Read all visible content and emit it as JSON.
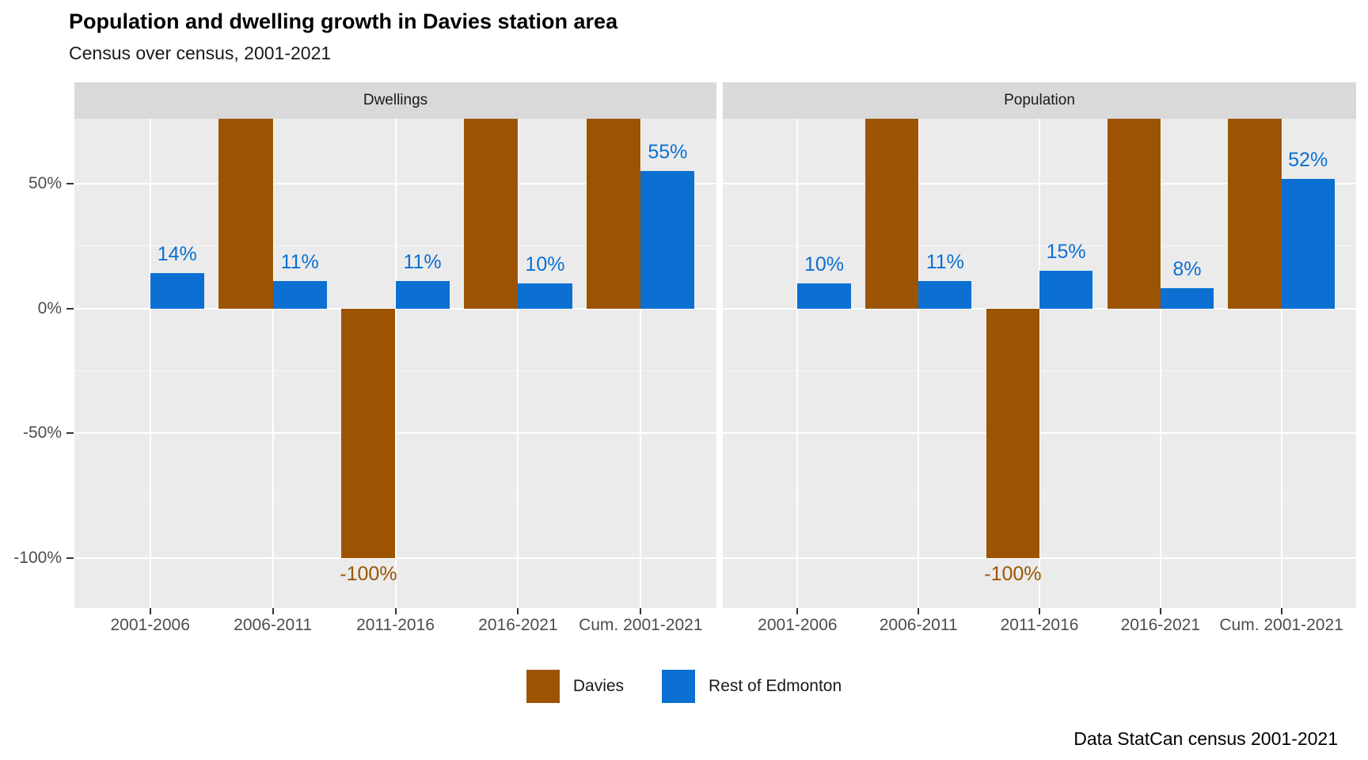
{
  "title": "Population and dwelling growth in Davies station area",
  "subtitle": "Census over census, 2001-2021",
  "caption": "Data StatCan census 2001-2021",
  "colors": {
    "davies": "#9C5402",
    "rest_of_edmonton": "#0B70D2",
    "panel_background": "#EBEBEB",
    "strip_background": "#D9D9D9",
    "axis_text": "#4D4D4D"
  },
  "legend": {
    "items": [
      {
        "label": "Davies",
        "color": "#9C5402"
      },
      {
        "label": "Rest of Edmonton",
        "color": "#0B70D2"
      }
    ]
  },
  "chart_data": {
    "type": "bar",
    "grouping": "dodged",
    "categories": [
      "2001-2006",
      "2006-2011",
      "2011-2016",
      "2016-2021",
      "Cum. 2001-2021"
    ],
    "y_axis": {
      "unit": "%",
      "range": [
        -120,
        76
      ],
      "major_ticks": [
        {
          "value": 50,
          "label": "50%"
        },
        {
          "value": 0,
          "label": "0%"
        },
        {
          "value": -50,
          "label": "-50%"
        },
        {
          "value": -100,
          "label": "-100%"
        }
      ],
      "minor_gridlines": [
        25,
        -25,
        -75
      ]
    },
    "facets": [
      {
        "label": "Dwellings",
        "series": [
          {
            "name": "Davies",
            "color": "#9C5402",
            "values": [
              null,
              "offscale_high",
              -100,
              "offscale_high",
              "offscale_high"
            ],
            "labels": [
              null,
              null,
              "-100%",
              null,
              null
            ]
          },
          {
            "name": "Rest of Edmonton",
            "color": "#0B70D2",
            "values": [
              14,
              11,
              11,
              10,
              55
            ],
            "labels": [
              "14%",
              "11%",
              "11%",
              "10%",
              "55%"
            ]
          }
        ]
      },
      {
        "label": "Population",
        "series": [
          {
            "name": "Davies",
            "color": "#9C5402",
            "values": [
              null,
              "offscale_high",
              -100,
              "offscale_high",
              "offscale_high"
            ],
            "labels": [
              null,
              null,
              "-100%",
              null,
              null
            ]
          },
          {
            "name": "Rest of Edmonton",
            "color": "#0B70D2",
            "values": [
              10,
              11,
              15,
              8,
              52
            ],
            "labels": [
              "10%",
              "11%",
              "15%",
              "8%",
              "52%"
            ]
          }
        ]
      }
    ],
    "notes": "Davies bars marked offscale_high are clipped at the top of the panel (value labels not shown in the image)."
  }
}
